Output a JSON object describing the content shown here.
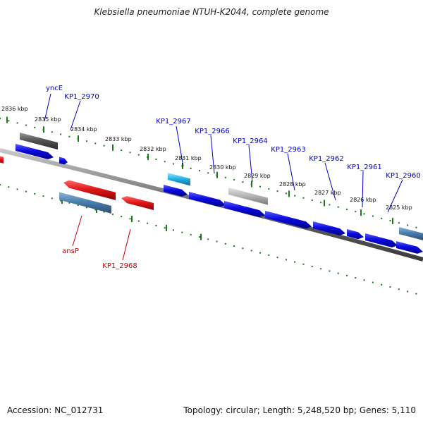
{
  "title": "Klebsiella pneumoniae NTUH-K2044, complete genome",
  "footer": {
    "accession": "Accession: NC_012731",
    "stats": "Topology: circular; Length: 5,248,520 bp; Genes: 5,110"
  },
  "colors": {
    "forward_label": "#0000cc",
    "reverse_label": "#cc0000",
    "forward_gene": "#0a0adf",
    "reverse_gene": "#e01818",
    "steel_gene": "#4a7fae",
    "cyan_gene": "#25b6e8",
    "gray_gene": "#b8b8b8",
    "dark_gene": "#555555",
    "tick": "#1a7a1a",
    "backbone": "#707070"
  },
  "ticks": [
    "2836 kbp",
    "2835 kbp",
    "2834 kbp",
    "2833 kbp",
    "2832 kbp",
    "2831 kbp",
    "2830 kbp",
    "2829 kbp",
    "2828 kbp",
    "2827 kbp",
    "2826 kbp",
    "2825 kbp"
  ],
  "forward_labels": [
    "yncE",
    "KP1_2970",
    "KP1_2967",
    "KP1_2966",
    "KP1_2964",
    "KP1_2963",
    "KP1_2962",
    "KP1_2961",
    "KP1_2960"
  ],
  "reverse_labels": [
    "ansP",
    "KP1_2968"
  ]
}
